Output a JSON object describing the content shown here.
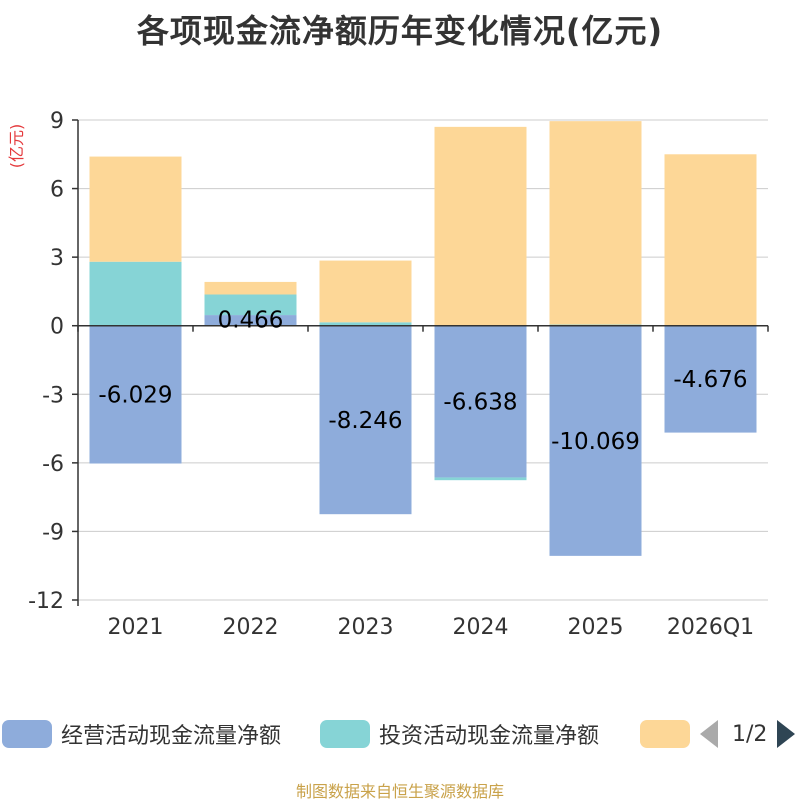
{
  "title": "各项现金流净额历年变化情况(亿元)",
  "source": "制图数据来自恒生聚源数据库",
  "pager": {
    "text": "1/2"
  },
  "colors": {
    "operating": "#8eacdb",
    "investing": "#86d4d6",
    "financing": "#fdd797",
    "axis": "#333333",
    "grid": "#cccccc",
    "unit": "#e4393c"
  },
  "chart_data": {
    "type": "bar",
    "stacked": true,
    "title": "各项现金流净额历年变化情况(亿元)",
    "ylabel": "(亿元)",
    "ylim": [
      -12,
      9
    ],
    "yticks": [
      9,
      6,
      3,
      0,
      -3,
      -6,
      -9,
      -12
    ],
    "categories": [
      "2021",
      "2022",
      "2023",
      "2024",
      "2025",
      "2026Q1"
    ],
    "series": [
      {
        "name": "经营活动现金流量净额",
        "color": "#8eacdb",
        "values": [
          -6.029,
          0.466,
          -8.246,
          -6.638,
          -10.069,
          -4.676
        ],
        "labels": [
          "-6.029",
          "0.466",
          "-8.246",
          "-6.638",
          "-10.069",
          "-4.676"
        ]
      },
      {
        "name": "投资活动现金流量净额",
        "color": "#86d4d6",
        "values": [
          2.8,
          0.9,
          0.15,
          -0.12,
          0.05,
          0.0
        ]
      },
      {
        "name": "",
        "color": "#fdd797",
        "values": [
          4.6,
          0.55,
          2.7,
          8.7,
          8.9,
          7.5
        ]
      }
    ],
    "legend_position": "bottom"
  }
}
